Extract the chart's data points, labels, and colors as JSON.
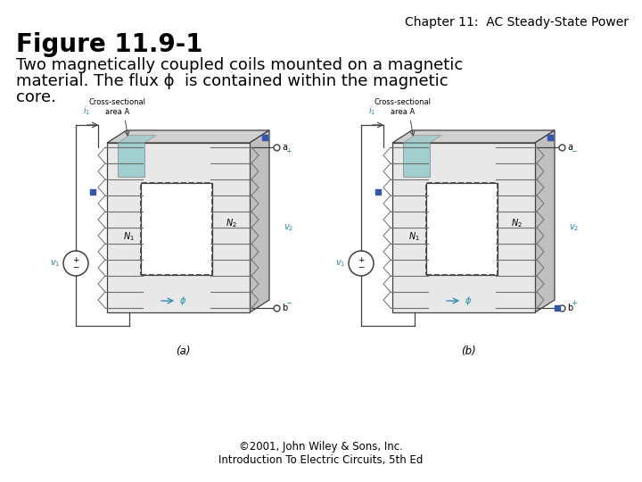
{
  "background_color": "#ffffff",
  "chapter_text": "Chapter 11:  AC Steady-State Power",
  "chapter_fontsize": 10,
  "figure_label": "Figure 11.9-1",
  "figure_label_fontsize": 20,
  "description_lines": [
    "Two magnetically coupled coils mounted on a magnetic",
    "material. The flux ϕ  is contained within the magnetic",
    "core."
  ],
  "description_fontsize": 13,
  "copyright_line1": "©2001, John Wiley & Sons, Inc.",
  "copyright_line2": "Introduction To Electric Circuits, 5th Ed",
  "copyright_fontsize": 8.5,
  "line_color": "#404040",
  "core_face_color": "#e8e8e8",
  "core_top_color": "#d0d0d0",
  "core_right_color": "#c0c0c0",
  "teal_color": "#90c8c8",
  "blue_dot_color": "#3355aa",
  "cyan_text_color": "#2288aa",
  "coil_color": "#707070"
}
